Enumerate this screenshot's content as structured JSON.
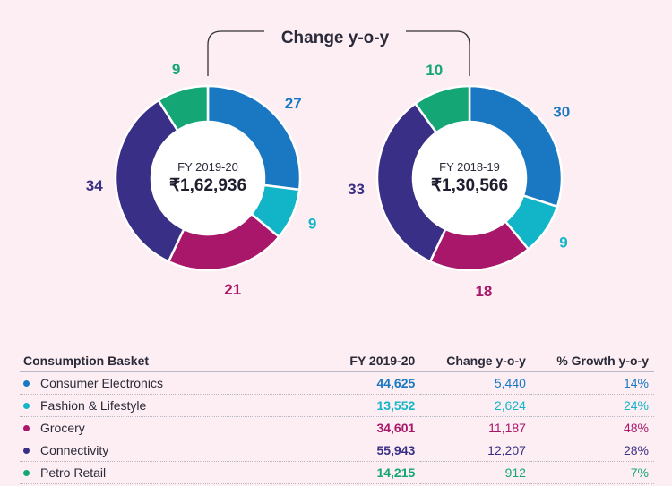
{
  "chart_data": {
    "type": "pie",
    "title": "Change y-o-y",
    "series": [
      {
        "center_period": "FY 2019-20",
        "center_total": "₹1,62,936",
        "categories": [
          "Consumer Electronics",
          "Fashion & Lifestyle",
          "Grocery",
          "Connectivity",
          "Petro Retail"
        ],
        "values": [
          27,
          9,
          21,
          34,
          9
        ]
      },
      {
        "center_period": "FY 2018-19",
        "center_total": "₹1,30,566",
        "categories": [
          "Consumer Electronics",
          "Fashion & Lifestyle",
          "Grocery",
          "Connectivity",
          "Petro Retail"
        ],
        "values": [
          30,
          9,
          18,
          33,
          10
        ]
      }
    ],
    "colors": [
      "#1a78c2",
      "#12b5c7",
      "#a9176a",
      "#3a2f86",
      "#14a775"
    ]
  },
  "table": {
    "headers": [
      "Consumption Basket",
      "FY 2019-20",
      "Change y-o-y",
      "% Growth y-o-y"
    ],
    "rows": [
      {
        "name": "Consumer Electronics",
        "value": "44,625",
        "change": "5,440",
        "growth": "14%",
        "color": "#1a78c2"
      },
      {
        "name": "Fashion & Lifestyle",
        "value": "13,552",
        "change": "2,624",
        "growth": "24%",
        "color": "#12b5c7"
      },
      {
        "name": "Grocery",
        "value": "34,601",
        "change": "11,187",
        "growth": "48%",
        "color": "#a9176a"
      },
      {
        "name": "Connectivity",
        "value": "55,943",
        "change": "12,207",
        "growth": "28%",
        "color": "#3a2f86"
      },
      {
        "name": "Petro Retail",
        "value": "14,215",
        "change": "912",
        "growth": "7%",
        "color": "#14a775"
      }
    ]
  }
}
